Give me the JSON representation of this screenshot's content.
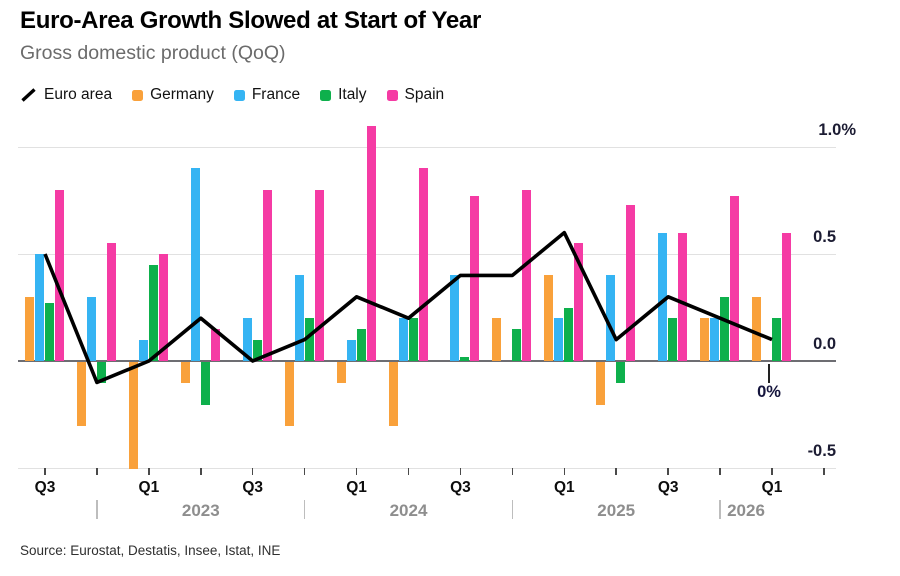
{
  "header": {
    "title": "Euro-Area Growth Slowed at Start of Year",
    "subtitle": "Gross domestic product (QoQ)"
  },
  "legend": {
    "items": [
      {
        "id": "euro-area",
        "label": "Euro area",
        "type": "line",
        "color": "#000000"
      },
      {
        "id": "germany",
        "label": "Germany",
        "type": "bar",
        "color": "#F9A13B"
      },
      {
        "id": "france",
        "label": "France",
        "type": "bar",
        "color": "#35B4F3"
      },
      {
        "id": "italy",
        "label": "Italy",
        "type": "bar",
        "color": "#0EB04C"
      },
      {
        "id": "spain",
        "label": "Spain",
        "type": "bar",
        "color": "#F53BA4"
      }
    ]
  },
  "chart_data": {
    "type": "bar",
    "title": "Gross domestic product (QoQ)",
    "categories": [
      "Q3 2022",
      "Q4 2022",
      "Q1 2023",
      "Q2 2023",
      "Q3 2023",
      "Q4 2023",
      "Q1 2024",
      "Q2 2024",
      "Q3 2024",
      "Q4 2024",
      "Q1 2025",
      "Q2 2025",
      "Q3 2025",
      "Q4 2025",
      "Q1 2026"
    ],
    "series": [
      {
        "name": "Euro area",
        "type": "line",
        "color": "#000000",
        "values": [
          0.5,
          -0.1,
          0.0,
          0.2,
          0.0,
          0.1,
          0.3,
          0.2,
          0.4,
          0.4,
          0.6,
          0.1,
          0.3,
          0.2,
          0.1
        ]
      },
      {
        "name": "Germany",
        "type": "bar",
        "color": "#F9A13B",
        "values": [
          0.3,
          -0.3,
          -0.5,
          -0.1,
          0.0,
          -0.3,
          -0.1,
          -0.3,
          0.0,
          0.2,
          0.4,
          -0.2,
          0.0,
          0.2,
          0.3
        ]
      },
      {
        "name": "France",
        "type": "bar",
        "color": "#35B4F3",
        "values": [
          0.5,
          0.3,
          0.1,
          0.9,
          0.2,
          0.4,
          0.1,
          0.2,
          0.4,
          0.0,
          0.2,
          0.4,
          0.6,
          0.2,
          0.0
        ]
      },
      {
        "name": "Italy",
        "type": "bar",
        "color": "#0EB04C",
        "values": [
          0.27,
          -0.1,
          0.45,
          -0.2,
          0.1,
          0.2,
          0.15,
          0.2,
          0.02,
          0.15,
          0.25,
          -0.1,
          0.2,
          0.3,
          0.2
        ]
      },
      {
        "name": "Spain",
        "type": "bar",
        "color": "#F53BA4",
        "values": [
          0.8,
          0.55,
          0.5,
          0.15,
          0.8,
          0.8,
          1.1,
          0.9,
          0.77,
          0.8,
          0.55,
          0.73,
          0.6,
          0.77,
          0.6
        ]
      }
    ],
    "ylim": [
      -0.5,
      1.1
    ],
    "yticks": [
      {
        "value": 1.0,
        "label": "1.0%"
      },
      {
        "value": 0.5,
        "label": "0.5"
      },
      {
        "value": 0.0,
        "label": "0.0"
      },
      {
        "value": -0.5,
        "label": "-0.5"
      }
    ],
    "x_ticks": [
      {
        "index": 0,
        "label": "Q3"
      },
      {
        "index": 2,
        "label": "Q1"
      },
      {
        "index": 4,
        "label": "Q3"
      },
      {
        "index": 6,
        "label": "Q1"
      },
      {
        "index": 8,
        "label": "Q3"
      },
      {
        "index": 10,
        "label": "Q1"
      },
      {
        "index": 12,
        "label": "Q3"
      },
      {
        "index": 14,
        "label": "Q1"
      }
    ],
    "year_axis": [
      {
        "label": "2023",
        "divider_index": 1
      },
      {
        "label": "2024",
        "divider_index": 5
      },
      {
        "label": "2025",
        "divider_index": 9
      },
      {
        "label": "2026",
        "divider_index": 13
      }
    ],
    "annotation": {
      "label": "0%",
      "series": "France",
      "category": "Q1 2026",
      "category_index": 14
    },
    "grid": "horizontal",
    "legend_position": "top"
  },
  "source": {
    "text": "Source: Eurostat, Destatis, Insee, Istat, INE"
  }
}
